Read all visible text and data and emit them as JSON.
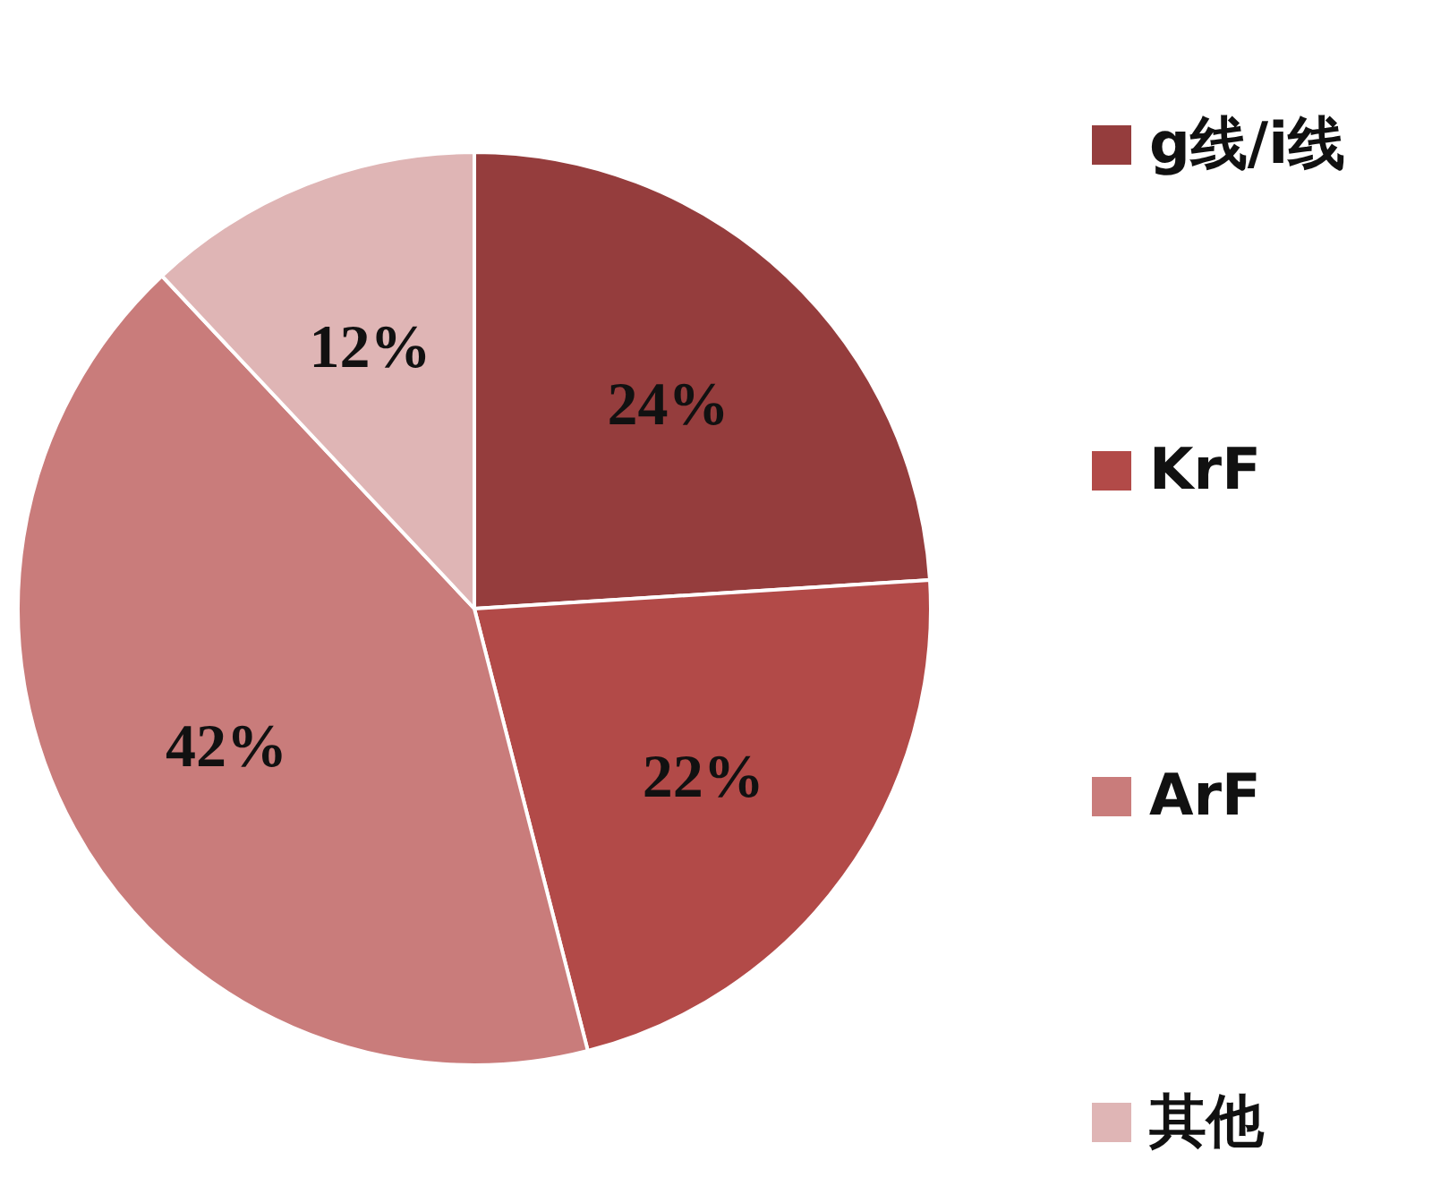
{
  "chart_data": {
    "type": "pie",
    "categories": [
      "g线/i线",
      "KrF",
      "ArF",
      "其他"
    ],
    "values": [
      24,
      22,
      42,
      12
    ],
    "colors": [
      "#953d3d",
      "#b24a48",
      "#c97c7b",
      "#dfb5b5"
    ],
    "value_labels": [
      "24%",
      "22%",
      "42%",
      "12%"
    ],
    "legend": "right"
  }
}
